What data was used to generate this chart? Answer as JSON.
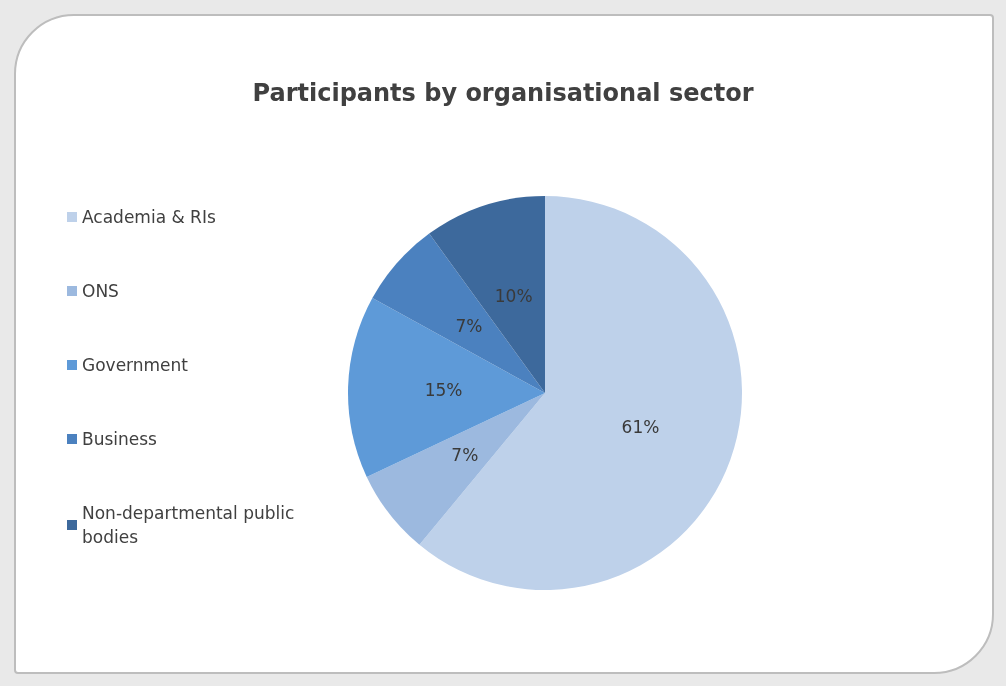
{
  "chart_data": {
    "type": "pie",
    "title": "Participants by organisational sector",
    "categories": [
      "Academia & RIs",
      "ONS",
      "Government",
      "Business",
      "Non-departmental public bodies"
    ],
    "values": [
      61,
      7,
      15,
      7,
      10
    ],
    "value_labels": [
      "61%",
      "7%",
      "15%",
      "7%",
      "10%"
    ],
    "colors": [
      "#bed1ea",
      "#9cb9df",
      "#5e9ad8",
      "#4b81bf",
      "#3d699c"
    ],
    "legend": "left"
  }
}
